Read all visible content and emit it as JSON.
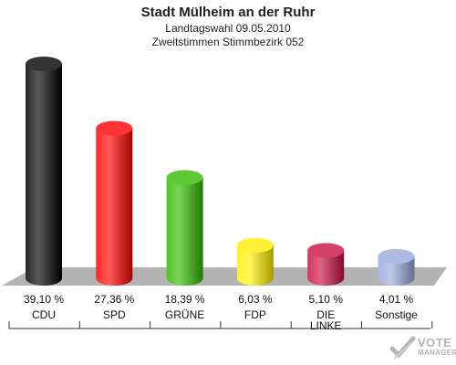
{
  "header": {
    "title": "Stadt Mülheim an der Ruhr",
    "subtitle1": "Landtagswahl 09.05.2010",
    "subtitle2": "Zweitstimmen Stimmbezirk 052"
  },
  "chart_data": {
    "type": "bar",
    "categories": [
      "CDU",
      "SPD",
      "GRÜNE",
      "FDP",
      "DIE LINKE",
      "Sonstige"
    ],
    "values": [
      39.1,
      27.36,
      18.39,
      6.03,
      5.1,
      4.01
    ],
    "value_labels": [
      "39,10 %",
      "27,36 %",
      "18,39 %",
      "6,03 %",
      "5,10 %",
      "4,01 %"
    ],
    "colors": [
      "#000000",
      "#ff0000",
      "#33bb00",
      "#ffee00",
      "#cc1144",
      "#99aadd"
    ],
    "title": "Stadt Mülheim an der Ruhr",
    "ylim": [
      0,
      39.1
    ],
    "grid": false
  },
  "watermark": {
    "line1": "VOTE",
    "line2": "MANAGER"
  }
}
